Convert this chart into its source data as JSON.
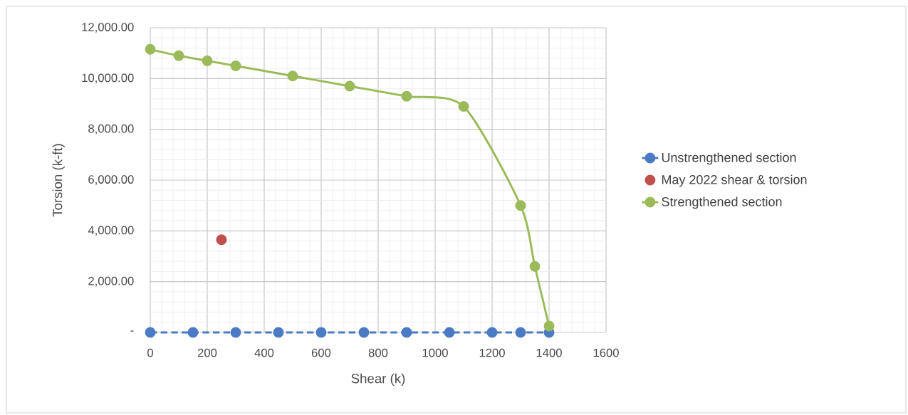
{
  "chart_data": {
    "type": "line",
    "xlabel": "Shear (k)",
    "ylabel": "Torsion (k-ft)",
    "xlim": [
      0,
      1600
    ],
    "xticks": [
      0,
      200,
      400,
      600,
      800,
      1000,
      1200,
      1400,
      1600
    ],
    "ylim": [
      0,
      12000
    ],
    "yticks": [
      {
        "value": 0,
        "label": "-"
      },
      {
        "value": 2000,
        "label": "2,000.00"
      },
      {
        "value": 4000,
        "label": "4,000.00"
      },
      {
        "value": 6000,
        "label": "6,000.00"
      },
      {
        "value": 8000,
        "label": "8,000.00"
      },
      {
        "value": 10000,
        "label": "10,000.00"
      },
      {
        "value": 12000,
        "label": "12,000.00"
      }
    ],
    "grid": true,
    "legend": "right",
    "marker": "circle",
    "series": [
      {
        "name": "Unstrengthened section",
        "line_style": "dashed",
        "color": "#4a7bc4",
        "x": [
          0,
          150,
          300,
          450,
          600,
          750,
          900,
          1050,
          1200,
          1300,
          1400
        ],
        "values": [
          0,
          0,
          0,
          0,
          0,
          0,
          0,
          0,
          0,
          0,
          0
        ]
      },
      {
        "name": "May 2022 shear & torsion",
        "type": "scatter",
        "color": "#c0504d",
        "x": [
          250
        ],
        "values": [
          3650
        ]
      },
      {
        "name": "Strengthened section",
        "line_style": "solid",
        "color": "#9bbb59",
        "x": [
          0,
          100,
          200,
          300,
          500,
          700,
          900,
          1100,
          1300,
          1350,
          1400
        ],
        "values": [
          11150,
          10900,
          10700,
          10500,
          10100,
          9700,
          9300,
          8900,
          5000,
          2600,
          250
        ]
      }
    ]
  }
}
